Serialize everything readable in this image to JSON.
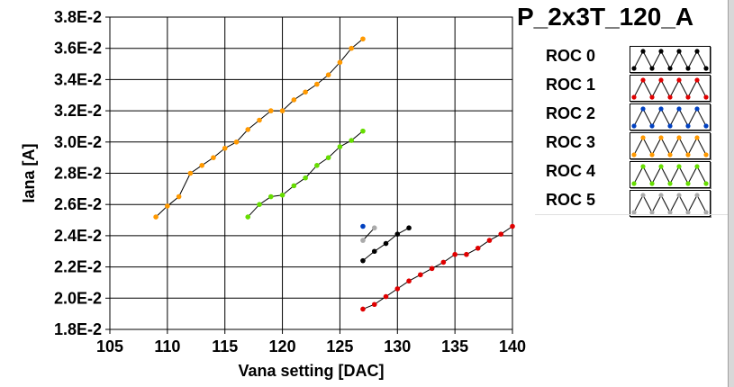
{
  "chart_data": {
    "type": "scatter",
    "title": "P_2x3T_120_A",
    "xlabel": "Vana setting [DAC]",
    "ylabel": "Iana [A]",
    "xlim": [
      105,
      140
    ],
    "ylim": [
      0.018,
      0.038
    ],
    "x_ticks": [
      105,
      110,
      115,
      120,
      125,
      130,
      135,
      140
    ],
    "x_tick_labels": [
      "105",
      "110",
      "115",
      "120",
      "125",
      "130",
      "135",
      "140"
    ],
    "y_ticks": [
      0.018,
      0.02,
      0.022,
      0.024,
      0.026,
      0.028,
      0.03,
      0.032,
      0.034,
      0.036,
      0.038
    ],
    "y_tick_labels": [
      "1.8E-2",
      "2.0E-2",
      "2.2E-2",
      "2.4E-2",
      "2.6E-2",
      "2.8E-2",
      "3.0E-2",
      "3.2E-2",
      "3.4E-2",
      "3.6E-2",
      "3.8E-2"
    ],
    "grid": true,
    "legend_position": "right",
    "series": [
      {
        "name": "ROC 0",
        "color": "#000000",
        "x": [
          127,
          128,
          129,
          130,
          131
        ],
        "y": [
          0.0224,
          0.023,
          0.0235,
          0.0241,
          0.0245
        ]
      },
      {
        "name": "ROC 1",
        "color": "#e00000",
        "x": [
          127,
          128,
          129,
          130,
          131,
          132,
          133,
          134,
          135,
          136,
          137,
          138,
          139,
          140
        ],
        "y": [
          0.0193,
          0.0196,
          0.0201,
          0.0206,
          0.0211,
          0.0215,
          0.0219,
          0.0223,
          0.0228,
          0.0228,
          0.0232,
          0.0237,
          0.0241,
          0.0246
        ]
      },
      {
        "name": "ROC 2",
        "color": "#0040c0",
        "x": [
          127
        ],
        "y": [
          0.0246
        ]
      },
      {
        "name": "ROC 3",
        "color": "#ff9900",
        "x": [
          109,
          110,
          111,
          112,
          113,
          114,
          115,
          116,
          117,
          118,
          119,
          120,
          121,
          122,
          123,
          124,
          125,
          126,
          127
        ],
        "y": [
          0.0252,
          0.0259,
          0.0265,
          0.028,
          0.0285,
          0.029,
          0.0296,
          0.03,
          0.0308,
          0.0314,
          0.032,
          0.032,
          0.0327,
          0.0332,
          0.0337,
          0.0343,
          0.0351,
          0.036,
          0.0366
        ]
      },
      {
        "name": "ROC 4",
        "color": "#66dd00",
        "x": [
          117,
          118,
          119,
          120,
          121,
          122,
          123,
          124,
          125,
          126,
          127
        ],
        "y": [
          0.0252,
          0.026,
          0.0265,
          0.0266,
          0.0272,
          0.0277,
          0.0285,
          0.029,
          0.0297,
          0.0301,
          0.0307
        ]
      },
      {
        "name": "ROC 5",
        "color": "#aaaaaa",
        "x": [
          127,
          128
        ],
        "y": [
          0.0237,
          0.0245
        ]
      }
    ]
  }
}
